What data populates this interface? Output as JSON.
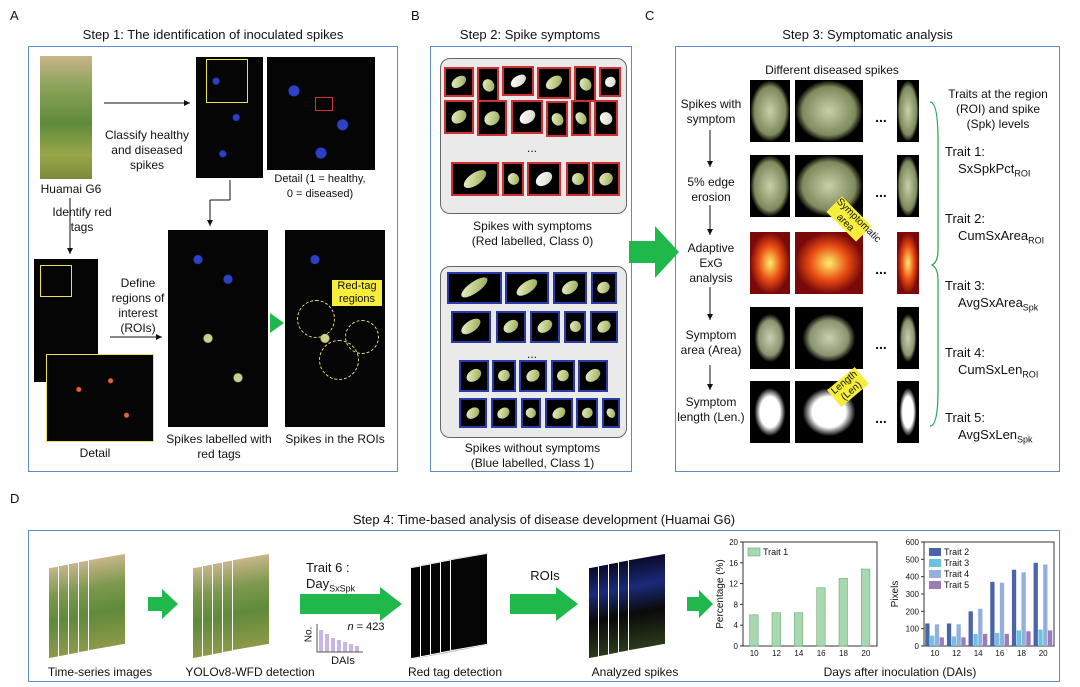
{
  "panels": {
    "A": {
      "letter": "A",
      "title": "Step 1: The identification of inoculated spikes",
      "huamai_label": "Huamai G6",
      "classify_label": "Classify healthy and diseased spikes",
      "detail_caption": "Detail (1 = healthy, 0 = diseased)",
      "identify_label": "Identify red tags",
      "define_label": "Define regions of interest (ROIs)",
      "detail_label": "Detail",
      "labelled_caption": "Spikes labelled with red tags",
      "rois_caption": "Spikes in the ROIs",
      "redtag_callout": "Red-tag regions"
    },
    "B": {
      "letter": "B",
      "title": "Step 2: Spike symptoms",
      "with_caption_1": "Spikes with symptoms",
      "with_caption_2": "(Red labelled, Class 0)",
      "without_caption_1": "Spikes without symptoms",
      "without_caption_2": "(Blue labelled, Class 1)",
      "ellipsis": "..."
    },
    "C": {
      "letter": "C",
      "title": "Step 3: Symptomatic analysis",
      "different_label": "Different diseased spikes",
      "rows": [
        "Spikes with symptom",
        "5% edge erosion",
        "Adaptive ExG analysis",
        "Symptom area (Area)",
        "Symptom length (Len.)"
      ],
      "symptomatic_callout": "Symptomatic area",
      "length_callout": "Length (Len)",
      "traits_header": "Traits at the region (ROI) and spike (Spk) levels",
      "traits": [
        {
          "label": "Trait 1:",
          "name": "SxSpkPct",
          "sub": "ROI"
        },
        {
          "label": "Trait 2:",
          "name": "CumSxArea",
          "sub": "ROI"
        },
        {
          "label": "Trait 3:",
          "name": "AvgSxArea",
          "sub": "Spk"
        },
        {
          "label": "Trait 4:",
          "name": "CumSxLen",
          "sub": "ROI"
        },
        {
          "label": "Trait 5:",
          "name": "AvgSxLen",
          "sub": "Spk"
        }
      ],
      "dots": "..."
    },
    "D": {
      "letter": "D",
      "title": "Step 4: Time-based analysis of disease development (Huamai G6)",
      "time_series": "Time-series images",
      "yolo": "YOLOv8-WFD detection",
      "trait6": "Trait 6 :",
      "day_name": "Day",
      "day_sub": "SxSpk",
      "inset_no": "No.",
      "inset_n": "n",
      "inset_eq": "= 423",
      "inset_dais": "DAIs",
      "red_tag_detection": "Red tag detection",
      "rois": "ROIs",
      "analyzed": "Analyzed spikes",
      "x_axis_label": "Days after inoculation (DAIs)"
    }
  },
  "colors": {
    "panel_border": "#5b8bc8",
    "green_arrow": "#1fb84a",
    "red": "#d13030",
    "blue": "#2a3aa8"
  },
  "chart_data": [
    {
      "type": "bar",
      "ylabel": "Percentage (%)",
      "xlabel": "Days after inoculation (DAIs)",
      "ylim": [
        0,
        20
      ],
      "yticks": [
        0,
        4,
        8,
        12,
        16,
        20
      ],
      "categories": [
        "10",
        "12",
        "14",
        "16",
        "18",
        "20"
      ],
      "series": [
        {
          "name": "Trait 1",
          "values": [
            6.0,
            6.4,
            6.4,
            11.2,
            13.0,
            14.8
          ],
          "color": "#a8d8b0"
        }
      ],
      "legend": "top-left"
    },
    {
      "type": "bar",
      "ylabel": "Pixels",
      "xlabel": "Days after inoculation (DAIs)",
      "ylim": [
        0,
        600
      ],
      "yticks": [
        0,
        100,
        200,
        300,
        400,
        500,
        600
      ],
      "categories": [
        "10",
        "12",
        "14",
        "16",
        "18",
        "20"
      ],
      "series": [
        {
          "name": "Trait 2",
          "values": [
            130,
            130,
            200,
            370,
            440,
            480
          ],
          "color": "#4b63a8"
        },
        {
          "name": "Trait 3",
          "values": [
            60,
            55,
            70,
            75,
            90,
            95
          ],
          "color": "#6cc3e0"
        },
        {
          "name": "Trait 4",
          "values": [
            125,
            125,
            215,
            365,
            425,
            470
          ],
          "color": "#94aede"
        },
        {
          "name": "Trait 5",
          "values": [
            50,
            50,
            70,
            70,
            85,
            90
          ],
          "color": "#9a7db8"
        }
      ],
      "legend": "top-left"
    }
  ]
}
